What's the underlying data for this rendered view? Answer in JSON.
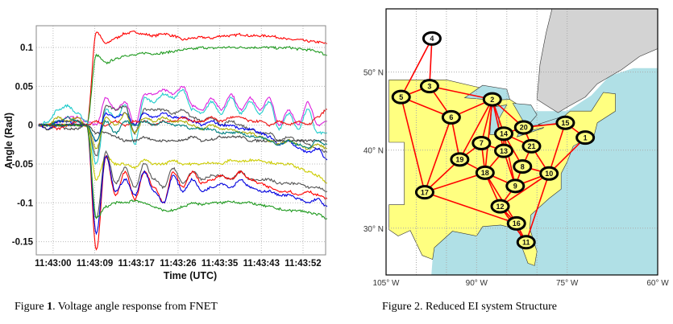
{
  "figure1": {
    "caption_prefix": "Figure ",
    "caption_number": "1",
    "caption_text": ". Voltage angle response from FNET"
  },
  "figure2": {
    "caption": "Figure 2. Reduced EI system Structure",
    "map": {
      "lon_labels": [
        "105° W",
        "90° W",
        "75° W",
        "60° W"
      ],
      "lon_values": [
        -105,
        -90,
        -75,
        -60
      ],
      "lat_labels": [
        "50° N",
        "40° N",
        "30° N"
      ],
      "lat_values": [
        50,
        40,
        30
      ],
      "colors": {
        "us_land": "#ffff80",
        "canada_land": "#d3d3d3",
        "water": "#b0e0e6",
        "edge": "#ff0000",
        "node_ring": "#000000"
      },
      "nodes": [
        {
          "id": "1",
          "lon": -72.0,
          "lat": 41.6
        },
        {
          "id": "2",
          "lon": -87.4,
          "lat": 46.5
        },
        {
          "id": "3",
          "lon": -97.8,
          "lat": 48.2
        },
        {
          "id": "4",
          "lon": -97.4,
          "lat": 54.3
        },
        {
          "id": "5",
          "lon": -102.5,
          "lat": 46.8
        },
        {
          "id": "6",
          "lon": -94.2,
          "lat": 44.2
        },
        {
          "id": "7",
          "lon": -89.2,
          "lat": 40.9
        },
        {
          "id": "8",
          "lon": -82.4,
          "lat": 37.9
        },
        {
          "id": "9",
          "lon": -83.6,
          "lat": 35.4
        },
        {
          "id": "10",
          "lon": -78.0,
          "lat": 37.0
        },
        {
          "id": "11",
          "lon": -81.8,
          "lat": 28.2
        },
        {
          "id": "12",
          "lon": -86.1,
          "lat": 32.8
        },
        {
          "id": "13",
          "lon": -85.5,
          "lat": 39.9
        },
        {
          "id": "14",
          "lon": -85.5,
          "lat": 42.1
        },
        {
          "id": "15",
          "lon": -75.3,
          "lat": 43.5
        },
        {
          "id": "16",
          "lon": -83.4,
          "lat": 30.6
        },
        {
          "id": "17",
          "lon": -98.6,
          "lat": 34.6
        },
        {
          "id": "18",
          "lon": -88.6,
          "lat": 37.1
        },
        {
          "id": "19",
          "lon": -92.8,
          "lat": 38.8
        },
        {
          "id": "20",
          "lon": -82.2,
          "lat": 42.9
        },
        {
          "id": "21",
          "lon": -80.9,
          "lat": 40.5
        }
      ],
      "edges": [
        [
          "4",
          "3"
        ],
        [
          "4",
          "5"
        ],
        [
          "3",
          "5"
        ],
        [
          "3",
          "2"
        ],
        [
          "3",
          "6"
        ],
        [
          "5",
          "6"
        ],
        [
          "5",
          "17"
        ],
        [
          "2",
          "6"
        ],
        [
          "2",
          "20"
        ],
        [
          "2",
          "14"
        ],
        [
          "2",
          "13"
        ],
        [
          "2",
          "7"
        ],
        [
          "2",
          "19"
        ],
        [
          "2",
          "18"
        ],
        [
          "6",
          "19"
        ],
        [
          "6",
          "17"
        ],
        [
          "20",
          "15"
        ],
        [
          "20",
          "14"
        ],
        [
          "20",
          "21"
        ],
        [
          "15",
          "1"
        ],
        [
          "15",
          "10"
        ],
        [
          "1",
          "10"
        ],
        [
          "14",
          "21"
        ],
        [
          "14",
          "8"
        ],
        [
          "14",
          "9"
        ],
        [
          "14",
          "13"
        ],
        [
          "7",
          "13"
        ],
        [
          "7",
          "19"
        ],
        [
          "7",
          "18"
        ],
        [
          "13",
          "18"
        ],
        [
          "13",
          "9"
        ],
        [
          "19",
          "17"
        ],
        [
          "19",
          "18"
        ],
        [
          "17",
          "18"
        ],
        [
          "17",
          "16"
        ],
        [
          "18",
          "9"
        ],
        [
          "18",
          "12"
        ],
        [
          "18",
          "16"
        ],
        [
          "8",
          "21"
        ],
        [
          "8",
          "10"
        ],
        [
          "8",
          "9"
        ],
        [
          "21",
          "10"
        ],
        [
          "9",
          "10"
        ],
        [
          "9",
          "12"
        ],
        [
          "10",
          "12"
        ],
        [
          "10",
          "11"
        ],
        [
          "12",
          "16"
        ],
        [
          "12",
          "11"
        ],
        [
          "16",
          "11"
        ]
      ]
    }
  },
  "chart_data": {
    "type": "line",
    "title": "",
    "xlabel": "Time (UTC)",
    "ylabel": "Angle (Rad)",
    "xlim": [
      "11:42:56.5",
      "11:43:56.7"
    ],
    "ylim": [
      -0.167,
      0.128
    ],
    "xticks": [
      "11:43:00",
      "11:43:09",
      "11:43:17",
      "11:43:26",
      "11:43:35",
      "11:43:43",
      "11:43:52"
    ],
    "yticks": [
      0.1,
      0.05,
      0,
      -0.05,
      -0.1,
      -0.15
    ],
    "ytick_labels": [
      "0.1",
      "0.05",
      "0",
      "-0.05",
      "-0.1",
      "-0.15"
    ],
    "grid": true,
    "legend": "none",
    "x": [
      "11:42:57",
      "11:42:59",
      "11:43:01",
      "11:43:03",
      "11:43:05",
      "11:43:07",
      "11:43:09",
      "11:43:11",
      "11:43:13",
      "11:43:15",
      "11:43:17",
      "11:43:19",
      "11:43:21",
      "11:43:23",
      "11:43:25",
      "11:43:27",
      "11:43:29",
      "11:43:31",
      "11:43:33",
      "11:43:35",
      "11:43:37",
      "11:43:39",
      "11:43:41",
      "11:43:43",
      "11:43:45",
      "11:43:47",
      "11:43:49",
      "11:43:51",
      "11:43:53",
      "11:43:55",
      "11:43:57"
    ],
    "series": [
      {
        "color": "#ff0000",
        "values": [
          0,
          0,
          0,
          0,
          0,
          0,
          0.12,
          0.105,
          0.112,
          0.118,
          0.12,
          0.117,
          0.115,
          0.118,
          0.115,
          0.11,
          0.112,
          0.113,
          0.112,
          0.115,
          0.115,
          0.117,
          0.115,
          0.115,
          0.115,
          0.113,
          0.11,
          0.11,
          0.108,
          0.107,
          0.105
        ]
      },
      {
        "color": "#1f9a1f",
        "values": [
          0,
          0,
          0,
          0,
          0,
          0,
          0.09,
          0.08,
          0.085,
          0.09,
          0.09,
          0.093,
          0.092,
          0.093,
          0.095,
          0.097,
          0.098,
          0.1,
          0.099,
          0.1,
          0.1,
          0.1,
          0.1,
          0.1,
          0.1,
          0.099,
          0.1,
          0.098,
          0.097,
          0.095,
          0.09
        ]
      },
      {
        "color": "#dd22dd",
        "values": [
          0,
          0,
          0.005,
          0.01,
          0.01,
          0.005,
          0.0,
          0.035,
          0.02,
          0.03,
          0.0,
          0.04,
          0.04,
          0.045,
          0.04,
          0.05,
          0.025,
          0.02,
          0.035,
          0.02,
          0.04,
          0.02,
          0.035,
          0.02,
          0.035,
          0.0,
          0.02,
          0.0,
          0.03,
          0.0,
          0.005
        ]
      },
      {
        "color": "#22cccc",
        "values": [
          0,
          0.005,
          0.02,
          0.025,
          0.015,
          0.005,
          -0.05,
          0.02,
          0.01,
          0.025,
          -0.025,
          0.035,
          0.03,
          0.04,
          0.035,
          0.045,
          0.02,
          0.015,
          0.03,
          0.015,
          0.035,
          0.015,
          0.03,
          0.015,
          0.03,
          -0.005,
          0.015,
          -0.005,
          0.02,
          -0.01,
          -0.01
        ]
      },
      {
        "color": "#555555",
        "values": [
          0,
          0,
          0.005,
          0.005,
          0.005,
          0,
          -0.04,
          0.025,
          0.02,
          0.025,
          -0.01,
          0.02,
          0.02,
          0.02,
          0.015,
          0.02,
          0.01,
          0.005,
          0.01,
          0.0,
          0.005,
          0.0,
          -0.005,
          -0.01,
          -0.01,
          -0.02,
          -0.015,
          -0.02,
          -0.025,
          -0.03,
          -0.035
        ]
      },
      {
        "color": "#0000ee",
        "values": [
          0,
          -0.005,
          0.005,
          0.005,
          0.0,
          0,
          -0.02,
          0.015,
          0.01,
          0.015,
          0.0,
          0.015,
          0.01,
          0.015,
          0.01,
          0.01,
          0.005,
          0.0,
          0.005,
          0.0,
          0.0,
          -0.005,
          -0.005,
          -0.01,
          -0.015,
          -0.025,
          -0.02,
          -0.03,
          -0.035,
          -0.03,
          -0.045
        ]
      },
      {
        "color": "#444444",
        "values": [
          0,
          -0.005,
          0,
          -0.005,
          -0.005,
          0,
          -0.01,
          -0.01,
          -0.015,
          -0.02,
          -0.02,
          -0.015,
          -0.02,
          -0.02,
          -0.02,
          -0.02,
          -0.015,
          -0.02,
          -0.018,
          -0.015,
          -0.015,
          -0.015,
          -0.02,
          -0.02,
          -0.02,
          -0.02,
          -0.02,
          -0.02,
          -0.02,
          -0.02,
          -0.02
        ]
      },
      {
        "color": "#ee1111",
        "values": [
          0,
          0,
          -0.005,
          0,
          0.005,
          0,
          0.005,
          0.0,
          0.005,
          0.0,
          0.005,
          0.005,
          0.0,
          0.005,
          0.005,
          0.01,
          0.005,
          0.005,
          0.01,
          0.005,
          0.01,
          0.01,
          0.005,
          0.005,
          0.0,
          0.005,
          0.0,
          0.005,
          0.0,
          0.01,
          0.02
        ]
      },
      {
        "color": "#aaaa00",
        "values": [
          0,
          0,
          0.01,
          0.005,
          0.01,
          0,
          -0.03,
          0.01,
          0.0,
          0.015,
          -0.01,
          0.01,
          0.005,
          0.01,
          0.005,
          0.005,
          0.0,
          -0.005,
          0.0,
          -0.005,
          -0.005,
          -0.01,
          -0.01,
          -0.015,
          -0.02,
          -0.025,
          -0.02,
          -0.025,
          -0.03,
          -0.025,
          -0.03
        ]
      },
      {
        "color": "#008080",
        "values": [
          0,
          0,
          0.005,
          0.01,
          0.005,
          0,
          -0.02,
          0.005,
          -0.01,
          0.005,
          0.0,
          0.005,
          0.0,
          0.005,
          0.0,
          0.0,
          -0.005,
          -0.005,
          -0.005,
          -0.01,
          -0.01,
          -0.01,
          -0.015,
          -0.015,
          -0.02,
          -0.025,
          -0.02,
          -0.025,
          -0.03,
          -0.02,
          -0.025
        ]
      },
      {
        "color": "#cccc00",
        "values": [
          0,
          0,
          0,
          0,
          0,
          0,
          -0.07,
          -0.04,
          -0.05,
          -0.05,
          -0.055,
          -0.045,
          -0.05,
          -0.05,
          -0.045,
          -0.05,
          -0.05,
          -0.05,
          -0.048,
          -0.05,
          -0.045,
          -0.047,
          -0.045,
          -0.045,
          -0.048,
          -0.05,
          -0.05,
          -0.055,
          -0.06,
          -0.065,
          -0.075
        ]
      },
      {
        "color": "#555555",
        "values": [
          0,
          0,
          0,
          0,
          0,
          0,
          -0.12,
          -0.035,
          -0.075,
          -0.055,
          -0.08,
          -0.05,
          -0.07,
          -0.08,
          -0.055,
          -0.075,
          -0.06,
          -0.07,
          -0.065,
          -0.065,
          -0.07,
          -0.06,
          -0.07,
          -0.07,
          -0.07,
          -0.075,
          -0.075,
          -0.075,
          -0.08,
          -0.08,
          -0.085
        ]
      },
      {
        "color": "#ff0000",
        "values": [
          0,
          0,
          0,
          0,
          0,
          0,
          -0.16,
          -0.04,
          -0.09,
          -0.06,
          -0.095,
          -0.06,
          -0.08,
          -0.1,
          -0.06,
          -0.08,
          -0.06,
          -0.075,
          -0.07,
          -0.065,
          -0.07,
          -0.06,
          -0.07,
          -0.075,
          -0.08,
          -0.085,
          -0.085,
          -0.09,
          -0.085,
          -0.09,
          -0.095
        ]
      },
      {
        "color": "#0000dd",
        "values": [
          0,
          0,
          0,
          0,
          0,
          0,
          -0.14,
          -0.04,
          -0.085,
          -0.07,
          -0.09,
          -0.06,
          -0.085,
          -0.1,
          -0.065,
          -0.085,
          -0.07,
          -0.085,
          -0.08,
          -0.075,
          -0.08,
          -0.07,
          -0.08,
          -0.085,
          -0.085,
          -0.09,
          -0.09,
          -0.095,
          -0.1,
          -0.095,
          -0.105
        ]
      },
      {
        "color": "#1f9a1f",
        "values": [
          0,
          0,
          0,
          0,
          0,
          0,
          -0.12,
          -0.105,
          -0.1,
          -0.1,
          -0.097,
          -0.1,
          -0.105,
          -0.11,
          -0.11,
          -0.105,
          -0.1,
          -0.102,
          -0.1,
          -0.1,
          -0.098,
          -0.1,
          -0.1,
          -0.103,
          -0.105,
          -0.108,
          -0.11,
          -0.11,
          -0.112,
          -0.115,
          -0.12
        ]
      }
    ]
  }
}
